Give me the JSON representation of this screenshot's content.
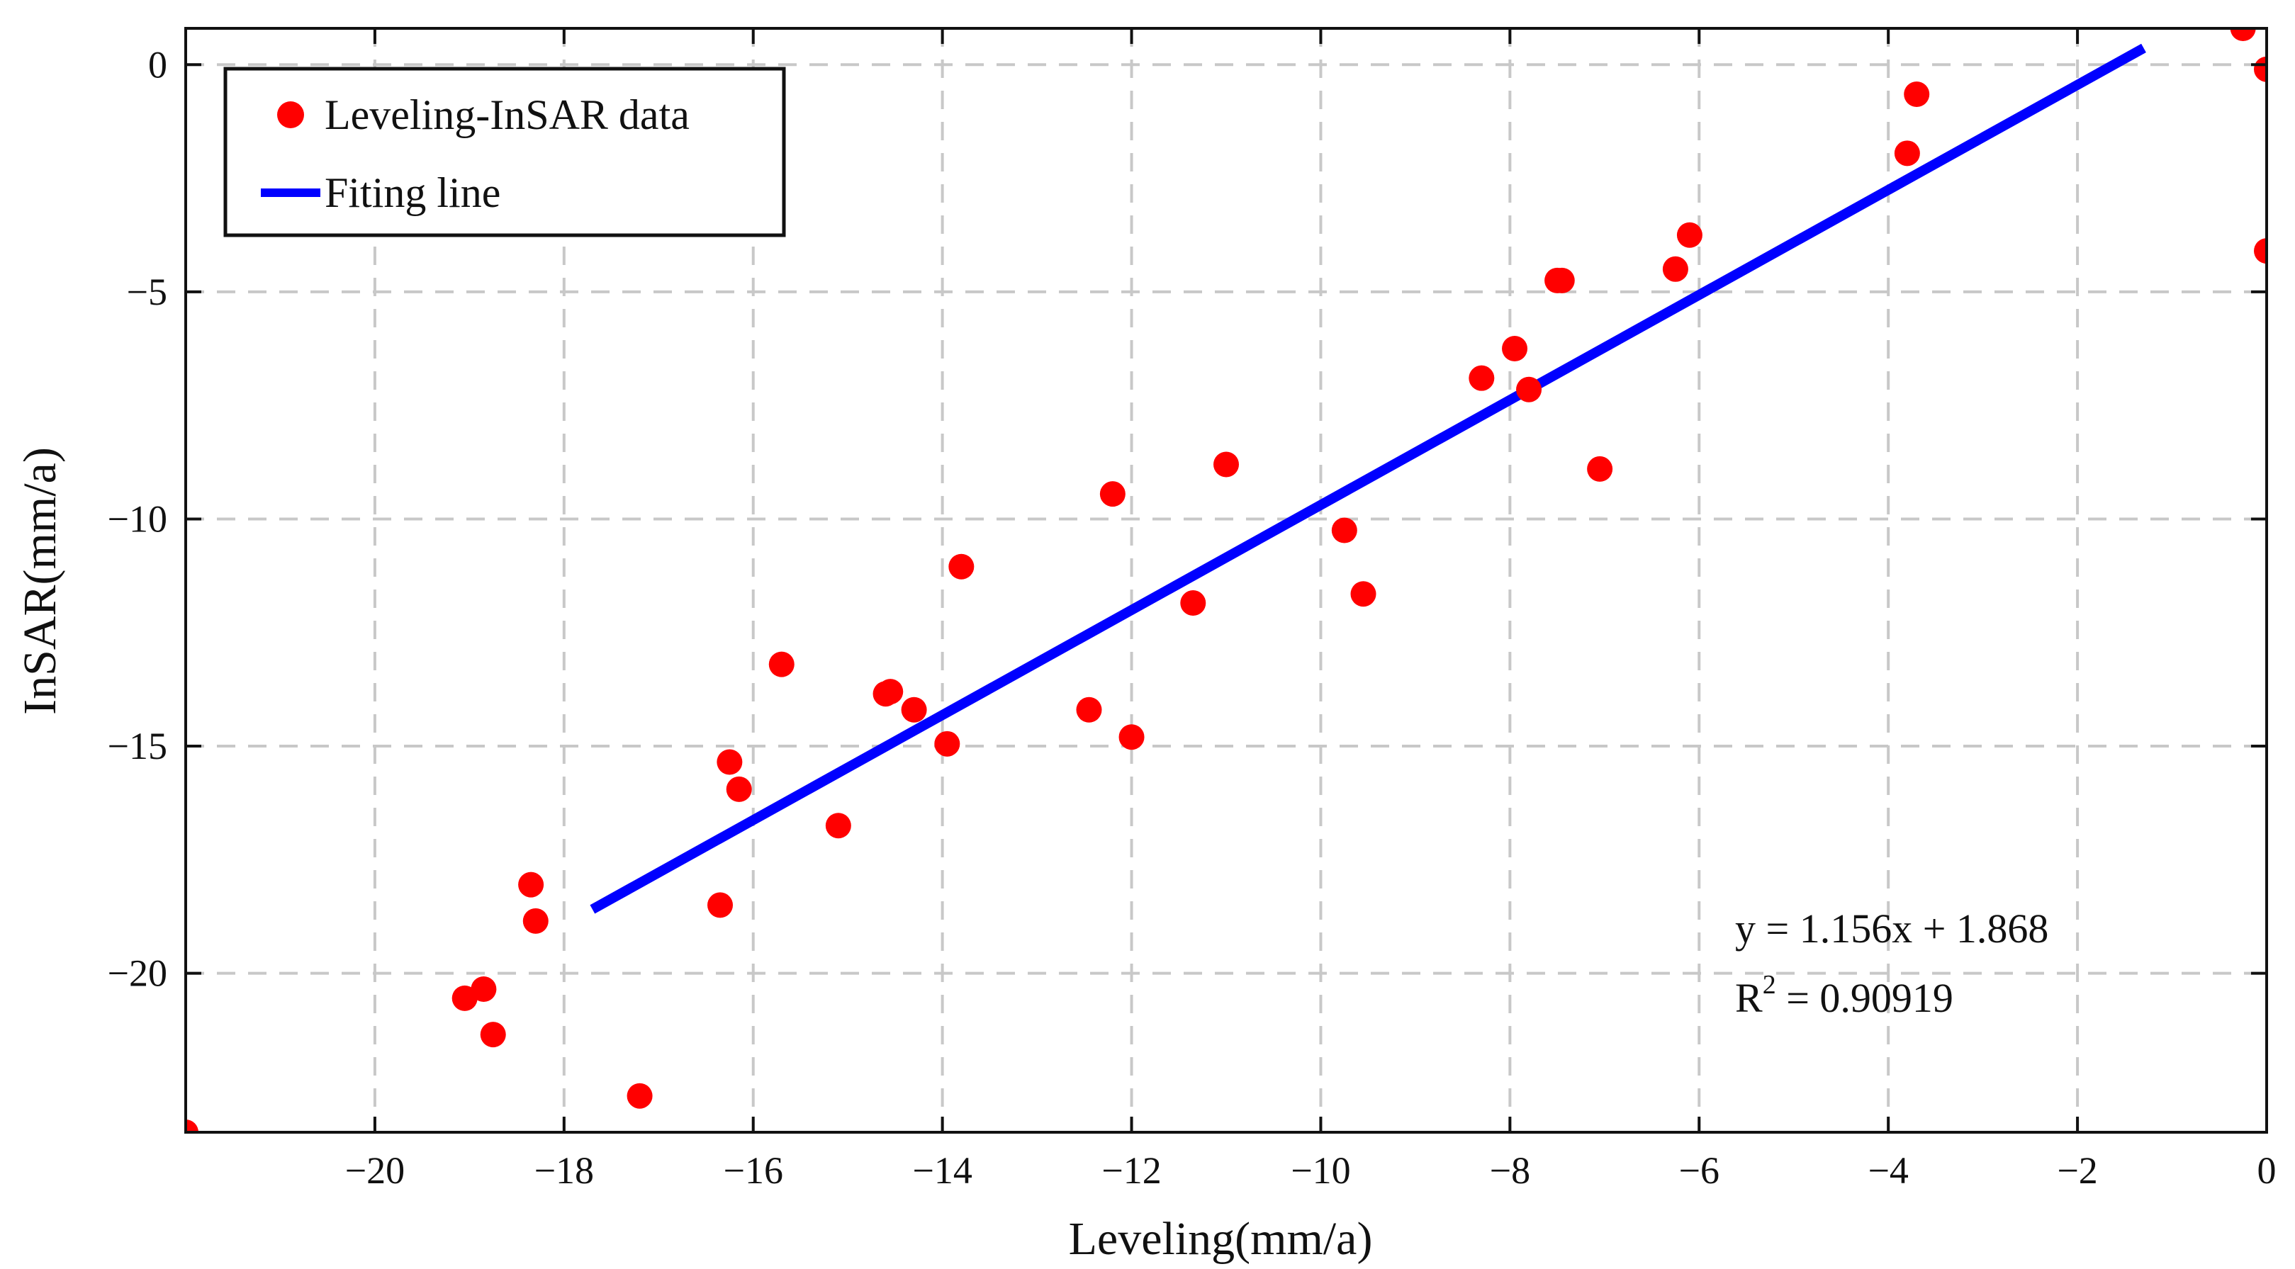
{
  "chart_data": {
    "type": "scatter",
    "xlabel": "Leveling(mm/a)",
    "ylabel": "InSAR(mm/a)",
    "xlim": [
      -22,
      0
    ],
    "ylim": [
      -23.5,
      0.8
    ],
    "xticks": [
      -20,
      -18,
      -16,
      -14,
      -12,
      -10,
      -8,
      -6,
      -4,
      -2,
      0
    ],
    "xtick_labels": [
      "−20",
      "−18",
      "−16",
      "−14",
      "−12",
      "−10",
      "−8",
      "−6",
      "−4",
      "−2",
      "0"
    ],
    "yticks": [
      0,
      -5,
      -10,
      -15,
      -20
    ],
    "ytick_labels": [
      "0",
      "−5",
      "−10",
      "−15",
      "−20"
    ],
    "grid": true,
    "legend": {
      "position": "top-left",
      "entries": [
        {
          "label": "Leveling-InSAR data",
          "marker": "dot",
          "color": "#ff0000"
        },
        {
          "label": "Fiting line",
          "marker": "line",
          "color": "#0000ff"
        }
      ]
    },
    "series": [
      {
        "name": "Leveling-InSAR data",
        "color": "#ff0000",
        "points": [
          [
            -22.0,
            -23.5
          ],
          [
            -19.05,
            -20.55
          ],
          [
            -18.85,
            -20.35
          ],
          [
            -18.75,
            -21.35
          ],
          [
            -18.35,
            -18.05
          ],
          [
            -18.3,
            -18.85
          ],
          [
            -17.2,
            -22.7
          ],
          [
            -16.35,
            -18.5
          ],
          [
            -16.25,
            -15.35
          ],
          [
            -16.15,
            -15.95
          ],
          [
            -15.7,
            -13.2
          ],
          [
            -15.1,
            -16.75
          ],
          [
            -14.6,
            -13.85
          ],
          [
            -14.55,
            -13.8
          ],
          [
            -14.3,
            -14.2
          ],
          [
            -13.95,
            -14.95
          ],
          [
            -13.8,
            -11.05
          ],
          [
            -12.45,
            -14.2
          ],
          [
            -12.2,
            -9.45
          ],
          [
            -12.0,
            -14.8
          ],
          [
            -11.35,
            -11.85
          ],
          [
            -11.0,
            -8.8
          ],
          [
            -9.75,
            -10.25
          ],
          [
            -9.55,
            -11.65
          ],
          [
            -8.3,
            -6.9
          ],
          [
            -7.95,
            -6.25
          ],
          [
            -7.8,
            -7.15
          ],
          [
            -7.5,
            -4.75
          ],
          [
            -7.45,
            -4.75
          ],
          [
            -7.05,
            -8.9
          ],
          [
            -6.25,
            -4.5
          ],
          [
            -6.1,
            -3.75
          ],
          [
            -3.8,
            -1.95
          ],
          [
            -3.7,
            -0.65
          ],
          [
            -0.25,
            0.8
          ],
          [
            0.0,
            -0.1
          ],
          [
            0.0,
            -4.1
          ]
        ]
      },
      {
        "name": "Fiting line",
        "color": "#0000ff",
        "type": "line",
        "x": [
          -17.7,
          -1.3
        ],
        "y": [
          -18.593,
          0.365
        ]
      }
    ],
    "annotations": {
      "equation": "y = 1.156x + 1.868",
      "r2_prefix": "R",
      "r2_superscript": "2",
      "r2_suffix": " = 0.90919"
    }
  }
}
